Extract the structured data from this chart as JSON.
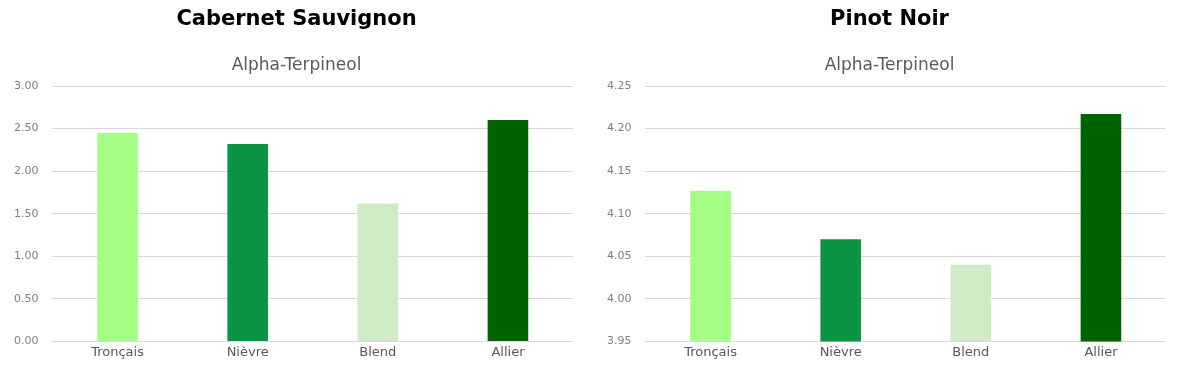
{
  "chart_data": [
    {
      "type": "bar",
      "title": "Cabernet Sauvignon",
      "subtitle": "Alpha-Terpineol",
      "categories": [
        "Tronçais",
        "Nièvre",
        "Blend",
        "Allier"
      ],
      "values": [
        2.45,
        2.32,
        1.62,
        2.6
      ],
      "colors": [
        "#a6fd86",
        "#0b9444",
        "#d0eac4",
        "#006200"
      ],
      "ylim": [
        0,
        3
      ],
      "yticks": [
        {
          "value": 0,
          "label": "0.00"
        },
        {
          "value": 0.5,
          "label": "0.50"
        },
        {
          "value": 1,
          "label": "1.00"
        },
        {
          "value": 1.5,
          "label": "1.50"
        },
        {
          "value": 2,
          "label": "2.00"
        },
        {
          "value": 2.5,
          "label": "2.50"
        },
        {
          "value": 3,
          "label": "3.00"
        }
      ],
      "grid": "y"
    },
    {
      "type": "bar",
      "title": "Pinot Noir",
      "subtitle": "Alpha-Terpineol",
      "categories": [
        "Tronçais",
        "Nièvre",
        "Blend",
        "Allier"
      ],
      "values": [
        4.127,
        4.07,
        4.04,
        4.217
      ],
      "colors": [
        "#a6fd86",
        "#0b9444",
        "#d0eac4",
        "#006200"
      ],
      "ylim": [
        3.95,
        4.25
      ],
      "yticks": [
        {
          "value": 3.95,
          "label": "3.95"
        },
        {
          "value": 4,
          "label": "4.00"
        },
        {
          "value": 4.05,
          "label": "4.05"
        },
        {
          "value": 4.1,
          "label": "4.10"
        },
        {
          "value": 4.15,
          "label": "4.15"
        },
        {
          "value": 4.2,
          "label": "4.20"
        },
        {
          "value": 4.25,
          "label": "4.25"
        }
      ],
      "grid": "y"
    }
  ]
}
